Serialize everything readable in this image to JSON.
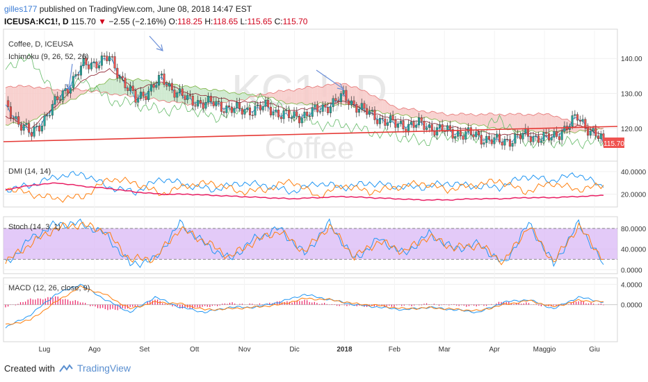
{
  "header": {
    "user": "gilles177",
    "published": "published on TradingView.com, June 08, 2018 14:47 EST"
  },
  "symbol": {
    "ticker": "ICEUSA:KC1!, D",
    "last": "115.70",
    "arrow": "▼",
    "change": "−2.55 (−2.16%)",
    "o_label": "O:",
    "open": "118.25",
    "h_label": "H:",
    "high": "118.65",
    "l_label": "L:",
    "low": "115.65",
    "c_label": "C:",
    "close": "115.70"
  },
  "watermark": {
    "main": "KC1!, D",
    "sub": "Coffee"
  },
  "panes": {
    "price": {
      "title": "Coffee, D, ICEUSA",
      "indicator": "Ichimoku (9, 26, 52, 26)",
      "ticks": [
        "140.00",
        "130.00",
        "120.00"
      ],
      "last_price": "115.70"
    },
    "dmi": {
      "title": "DMI (14, 14)",
      "ticks": [
        "40.0000",
        "20.0000"
      ]
    },
    "stoch": {
      "title": "Stoch (14, 3, 1)",
      "ticks": [
        "80.0000",
        "40.0000",
        "0.0000"
      ]
    },
    "macd": {
      "title": "MACD (12, 26, close, 9)",
      "ticks": [
        "4.0000",
        "0.0000"
      ]
    }
  },
  "x_axis": [
    "Lug",
    "Ago",
    "Set",
    "Ott",
    "Nov",
    "Dic",
    "2018",
    "Feb",
    "Mar",
    "Apr",
    "Maggio",
    "Giu"
  ],
  "footer": {
    "created": "Created with",
    "brand": "TradingView"
  },
  "colors": {
    "bull": "#26a69a",
    "bear": "#ef5350",
    "cloud_bear": "#f7c9c7",
    "cloud_bull": "#c8e6c9",
    "stoch_band": "#d9b8f5",
    "dmi_plus": "#2196f3",
    "dmi_minus": "#ff7f0e",
    "adx": "#e91e63",
    "macd": "#2196f3",
    "signal": "#ff7f0e",
    "hist": "#e91e63",
    "trendline": "#e53935"
  },
  "chart_data": [
    {
      "type": "candlestick",
      "title": "Coffee, D, ICEUSA",
      "indicator": "Ichimoku (9, 26, 52, 26)",
      "ylim": [
        111,
        148
      ],
      "yticks": [
        120,
        130,
        140
      ],
      "x": [
        "2018-06-20",
        "2018-07-05",
        "2018-07-20",
        "2018-08-05",
        "2018-08-20",
        "2018-09-05",
        "2018-09-20",
        "2018-10-05",
        "2018-10-20",
        "2018-11-05",
        "2018-11-20",
        "2018-12-05",
        "2018-12-20",
        "2018-01-05",
        "2018-01-20",
        "2018-02-05",
        "2018-02-20",
        "2018-03-05",
        "2018-03-20",
        "2018-04-05",
        "2018-04-20",
        "2018-05-05",
        "2018-05-20",
        "2018-06-05"
      ],
      "close": [
        126,
        118,
        128,
        138,
        140,
        128,
        134,
        128,
        127,
        125,
        126,
        123,
        125,
        129,
        124,
        121,
        121,
        119,
        118,
        116,
        118,
        117,
        123,
        116
      ],
      "last": 115.7,
      "ichimoku_span_a": [
        121,
        122,
        126,
        130,
        134,
        134,
        133,
        132,
        131,
        130,
        129,
        127,
        127,
        127,
        125,
        124,
        123,
        122,
        121,
        120,
        119,
        119,
        119,
        120
      ],
      "ichimoku_span_b": [
        132,
        132,
        131,
        131,
        130,
        129,
        128,
        127,
        127,
        128,
        130,
        131,
        132,
        133,
        130,
        126,
        125,
        124,
        124,
        124,
        124,
        124,
        121,
        120
      ]
    },
    {
      "type": "line",
      "title": "DMI (14, 14)",
      "ylim": [
        10,
        48
      ],
      "yticks": [
        20,
        40
      ],
      "series": [
        {
          "values": [
            24,
            28,
            36,
            38,
            26,
            22,
            34,
            28,
            24,
            30,
            28,
            22,
            30,
            26,
            30,
            27,
            26,
            30,
            27,
            26,
            36,
            32,
            38,
            26
          ]
        },
        {
          "values": [
            26,
            20,
            16,
            18,
            34,
            30,
            20,
            28,
            30,
            22,
            24,
            32,
            18,
            28,
            22,
            26,
            30,
            24,
            28,
            32,
            22,
            30,
            24,
            28
          ]
        },
        {
          "values": [
            24,
            28,
            30,
            27,
            25,
            22,
            20,
            20,
            19,
            18,
            17,
            16,
            17,
            18,
            17,
            16,
            15,
            15,
            16,
            16,
            17,
            17,
            18,
            19
          ]
        }
      ]
    },
    {
      "type": "line",
      "title": "Stoch (14, 3, 1)",
      "ylim": [
        -5,
        100
      ],
      "yticks": [
        0,
        40,
        80
      ],
      "bands": [
        20,
        80
      ],
      "series": [
        {
          "values": [
            10,
            60,
            88,
            90,
            70,
            10,
            20,
            90,
            50,
            20,
            60,
            80,
            30,
            90,
            20,
            60,
            30,
            70,
            40,
            50,
            10,
            90,
            10,
            90,
            10
          ]
        },
        {
          "values": [
            15,
            50,
            80,
            88,
            75,
            20,
            22,
            80,
            55,
            25,
            55,
            75,
            35,
            85,
            25,
            55,
            35,
            65,
            42,
            48,
            15,
            85,
            15,
            85,
            20
          ]
        }
      ]
    },
    {
      "type": "line",
      "title": "MACD (12, 26, close, 9)",
      "ylim": [
        -7,
        5
      ],
      "yticks": [
        0,
        4
      ],
      "series": [
        {
          "values": [
            -4.5,
            -2,
            2,
            4,
            1,
            -1.5,
            1.5,
            -0.5,
            -1.5,
            -0.5,
            -0.5,
            0.5,
            2,
            1,
            0,
            -0.5,
            -1,
            -0.5,
            -1,
            -1.5,
            0.5,
            1,
            -0.8,
            1.5,
            0.5
          ]
        },
        {
          "values": [
            -4,
            -3,
            0.5,
            3.5,
            2,
            -0.8,
            0.5,
            0.2,
            -1,
            -0.8,
            -0.5,
            0,
            1.2,
            1,
            0.2,
            -0.2,
            -0.8,
            -0.6,
            -0.9,
            -1.2,
            0,
            0.8,
            -0.4,
            0.8,
            0.6
          ]
        },
        {
          "values": [
            -0.5,
            1,
            1.5,
            0.5,
            -1,
            -0.7,
            1,
            -0.7,
            -0.5,
            0.3,
            0,
            0.5,
            0.8,
            0,
            -0.2,
            -0.3,
            -0.2,
            0.1,
            -0.1,
            -0.3,
            0.5,
            0.2,
            -0.4,
            0.7,
            -0.1
          ]
        }
      ]
    }
  ]
}
